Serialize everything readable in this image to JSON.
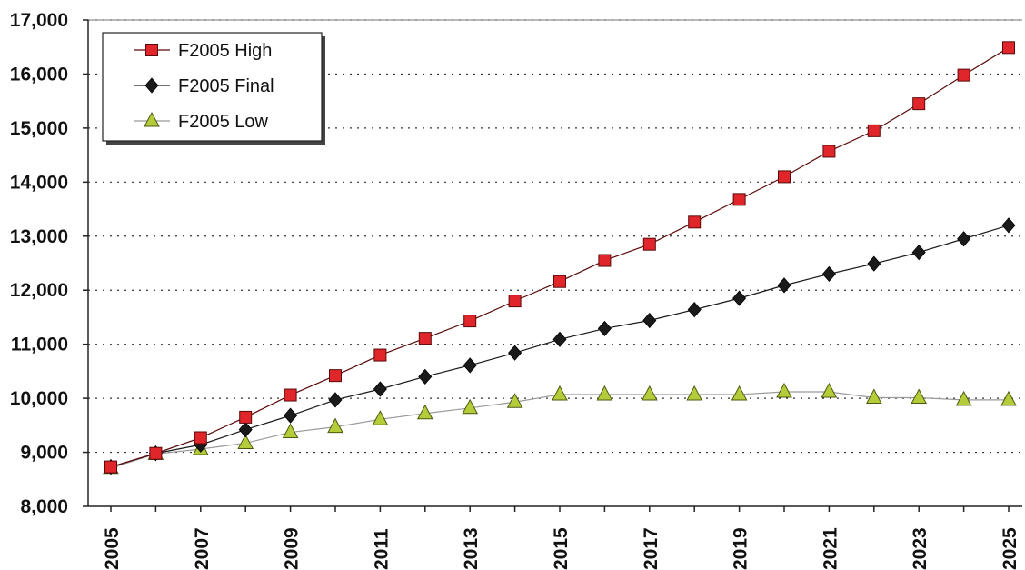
{
  "chart_data": {
    "type": "line",
    "title": "",
    "xlabel": "",
    "ylabel": "",
    "x": [
      2005,
      2006,
      2007,
      2008,
      2009,
      2010,
      2011,
      2012,
      2013,
      2014,
      2015,
      2016,
      2017,
      2018,
      2019,
      2020,
      2021,
      2022,
      2023,
      2024,
      2025
    ],
    "x_tick_labels": [
      "2005",
      "2007",
      "2009",
      "2011",
      "2013",
      "2015",
      "2017",
      "2019",
      "2021",
      "2023",
      "2025"
    ],
    "ylim": [
      8000,
      17000
    ],
    "y_tick_labels": [
      "8,000",
      "9,000",
      "10,000",
      "11,000",
      "12,000",
      "13,000",
      "14,000",
      "15,000",
      "16,000",
      "17,000"
    ],
    "y_ticks": [
      8000,
      9000,
      10000,
      11000,
      12000,
      13000,
      14000,
      15000,
      16000,
      17000
    ],
    "grid": "horizontal dotted",
    "legend_position": "top-left",
    "series": [
      {
        "name": "F2005 High",
        "marker": "square",
        "color": "#e0262b",
        "values": [
          8730,
          8980,
          9270,
          9650,
          10060,
          10420,
          10800,
          11110,
          11430,
          11800,
          12160,
          12550,
          12850,
          13260,
          13680,
          14100,
          14570,
          14950,
          15450,
          15980,
          16490
        ]
      },
      {
        "name": "F2005 Final",
        "marker": "diamond",
        "color": "#1a1a1a",
        "values": [
          8730,
          8980,
          9140,
          9420,
          9680,
          9970,
          10170,
          10400,
          10610,
          10840,
          11090,
          11290,
          11440,
          11640,
          11850,
          12090,
          12300,
          12490,
          12700,
          12950,
          13200
        ]
      },
      {
        "name": "F2005 Low",
        "marker": "triangle",
        "color": "#b5cc3a",
        "values": [
          8710,
          8970,
          9060,
          9170,
          9370,
          9470,
          9610,
          9720,
          9820,
          9930,
          10070,
          10070,
          10070,
          10070,
          10070,
          10120,
          10120,
          10010,
          10010,
          9970,
          9970
        ]
      }
    ]
  }
}
